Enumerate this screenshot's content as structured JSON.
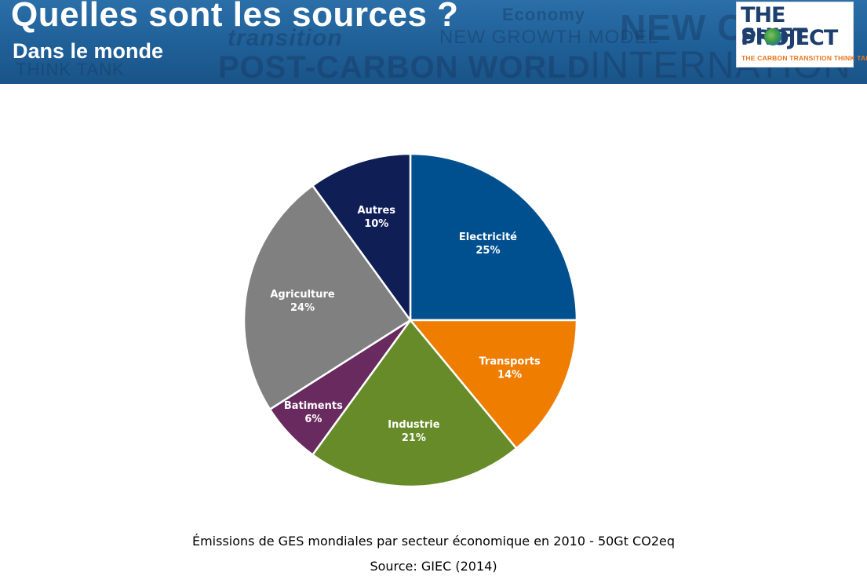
{
  "header": {
    "title": "Quelles sont les sources ?",
    "subtitle": "Dans le monde",
    "background_words": [
      "Economy",
      "NEW GROWTH MODEL",
      "POST-CARBON WORLD",
      "INTERNATION",
      "NEW C",
      "transition",
      "THINK TANK"
    ]
  },
  "logo": {
    "line1": "THE SHIFT",
    "line2": "PROJECT",
    "tagline": "THE CARBON TRANSITION THINK TANK",
    "colors": {
      "text": "#1d3f6e",
      "tagline": "#e8761d"
    }
  },
  "chart_data": {
    "type": "pie",
    "start_angle_deg": 0,
    "direction": "clockwise",
    "slices": [
      {
        "label": "Electricité",
        "value": 25,
        "value_label": "25%",
        "color": "#00508f"
      },
      {
        "label": "Transports",
        "value": 14,
        "value_label": "14%",
        "color": "#ef7d00"
      },
      {
        "label": "Industrie",
        "value": 21,
        "value_label": "21%",
        "color": "#678b29"
      },
      {
        "label": "Batiments",
        "value": 6,
        "value_label": "6%",
        "color": "#682a5f"
      },
      {
        "label": "Agriculture",
        "value": 24,
        "value_label": "24%",
        "color": "#808080"
      },
      {
        "label": "Autres",
        "value": 10,
        "value_label": "10%",
        "color": "#0f1f56"
      }
    ],
    "title": "",
    "legend": "none (labels inside slices)"
  },
  "caption": {
    "line1": "Émissions de GES mondiales par secteur économique en 2010 - 50Gt CO2eq",
    "line2": "Source: GIEC (2014)"
  }
}
